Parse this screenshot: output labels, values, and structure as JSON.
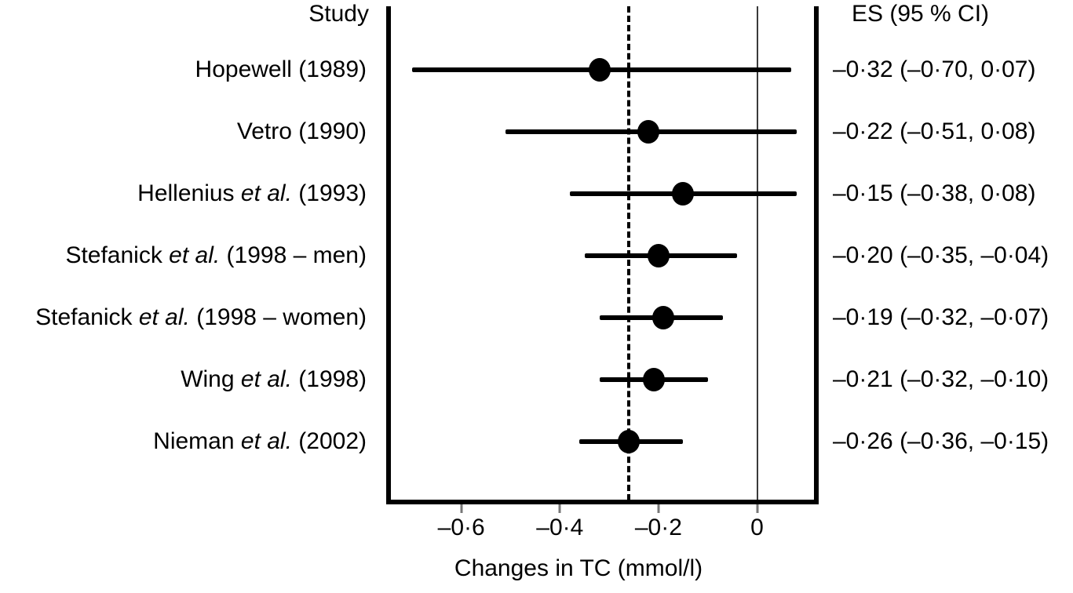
{
  "headers": {
    "study": "Study",
    "es": "ES (95 % CI)"
  },
  "chart_data": {
    "type": "scatter",
    "chart_variant": "forest-plot",
    "title": "",
    "xlabel": "Changes in TC (mmol/l)",
    "ylabel": "",
    "xlim": [
      -0.75,
      0.125
    ],
    "x_ticks": [
      -0.6,
      -0.4,
      -0.2,
      0
    ],
    "x_tick_labels": [
      "–0·6",
      "–0·4",
      "–0·2",
      "0"
    ],
    "grid": false,
    "zero_line_x": 0,
    "pooled_dashed_line_x": -0.26,
    "studies": [
      {
        "label_pre": "Hopewell (1989)",
        "label_italic": "",
        "label_post": "",
        "es": -0.32,
        "ci_low": -0.7,
        "ci_high": 0.07,
        "es_text": "–0·32 (–0·70, 0·07)"
      },
      {
        "label_pre": "Vetro (1990)",
        "label_italic": "",
        "label_post": "",
        "es": -0.22,
        "ci_low": -0.51,
        "ci_high": 0.08,
        "es_text": "–0·22 (–0·51, 0·08)"
      },
      {
        "label_pre": "Hellenius ",
        "label_italic": "et al.",
        "label_post": " (1993)",
        "es": -0.15,
        "ci_low": -0.38,
        "ci_high": 0.08,
        "es_text": "–0·15 (–0·38, 0·08)"
      },
      {
        "label_pre": "Stefanick ",
        "label_italic": "et al.",
        "label_post": " (1998 – men)",
        "es": -0.2,
        "ci_low": -0.35,
        "ci_high": -0.04,
        "es_text": "–0·20 (–0·35, –0·04)"
      },
      {
        "label_pre": "Stefanick ",
        "label_italic": "et al.",
        "label_post": " (1998 – women)",
        "es": -0.19,
        "ci_low": -0.32,
        "ci_high": -0.07,
        "es_text": "–0·19 (–0·32, –0·07)"
      },
      {
        "label_pre": "Wing ",
        "label_italic": "et al.",
        "label_post": " (1998)",
        "es": -0.21,
        "ci_low": -0.32,
        "ci_high": -0.1,
        "es_text": "–0·21 (–0·32, –0·10)"
      },
      {
        "label_pre": "Nieman ",
        "label_italic": "et al.",
        "label_post": " (2002)",
        "es": -0.26,
        "ci_low": -0.36,
        "ci_high": -0.15,
        "es_text": "–0·26 (–0·36, –0·15)"
      }
    ]
  },
  "colors": {
    "ink": "#000000",
    "background": "#ffffff",
    "zero_line": "#3a3a3a",
    "tick": "#777777"
  }
}
